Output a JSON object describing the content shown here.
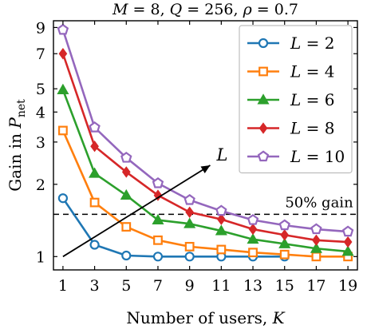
{
  "chart_data": {
    "type": "line",
    "title": "M = 8, Q = 256, ρ = 0.7",
    "xlabel": "Number of users, K",
    "ylabel": "Gain in P_net",
    "y_scale": "log",
    "xlim": [
      0.4,
      19.6
    ],
    "ylim": [
      0.88,
      9.6
    ],
    "x_ticks": [
      1,
      3,
      5,
      7,
      9,
      11,
      13,
      15,
      17,
      19
    ],
    "y_ticks": [
      1,
      2,
      3,
      4,
      5,
      7,
      9
    ],
    "grid": false,
    "legend_position": "top-right",
    "series": [
      {
        "name": "L = 2",
        "color": "#1f77b4",
        "marker": "circle",
        "x": [
          1,
          3,
          5,
          7,
          9,
          11,
          13,
          15
        ],
        "y": [
          1.75,
          1.12,
          1.01,
          1.0,
          1.0,
          1.0,
          1.0,
          1.0
        ]
      },
      {
        "name": "L = 4",
        "color": "#ff7f0e",
        "marker": "square",
        "x": [
          1,
          3,
          5,
          7,
          9,
          11,
          13,
          15,
          17,
          19
        ],
        "y": [
          3.35,
          1.68,
          1.33,
          1.17,
          1.1,
          1.07,
          1.04,
          1.02,
          1.0,
          1.0
        ]
      },
      {
        "name": "L = 6",
        "color": "#2ca02c",
        "marker": "triangle",
        "x": [
          1,
          3,
          5,
          7,
          9,
          11,
          13,
          15,
          17,
          19
        ],
        "y": [
          4.95,
          2.22,
          1.8,
          1.42,
          1.37,
          1.28,
          1.18,
          1.13,
          1.08,
          1.05
        ]
      },
      {
        "name": "L = 8",
        "color": "#d62728",
        "marker": "diamond",
        "x": [
          1,
          3,
          5,
          7,
          9,
          11,
          13,
          15,
          17,
          19
        ],
        "y": [
          7.0,
          2.88,
          2.25,
          1.8,
          1.53,
          1.43,
          1.3,
          1.23,
          1.17,
          1.15
        ]
      },
      {
        "name": "L = 10",
        "color": "#9467bd",
        "marker": "pentagon",
        "x": [
          1,
          3,
          5,
          7,
          9,
          11,
          13,
          15,
          17,
          19
        ],
        "y": [
          8.8,
          3.45,
          2.58,
          2.02,
          1.72,
          1.55,
          1.42,
          1.35,
          1.3,
          1.27
        ]
      }
    ],
    "annotations": {
      "threshold_line": {
        "y": 1.5,
        "style": "dashed",
        "label": "50% gain"
      },
      "arrow": {
        "from": [
          1,
          1.0
        ],
        "to": [
          10.3,
          2.4
        ],
        "label": "L"
      }
    }
  }
}
